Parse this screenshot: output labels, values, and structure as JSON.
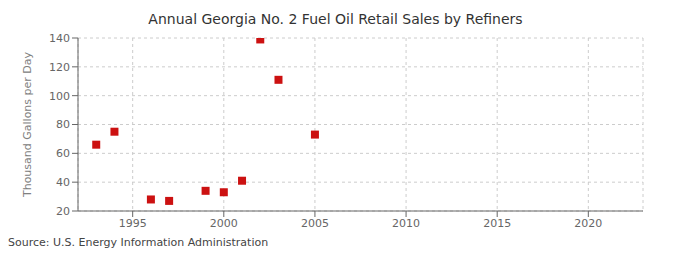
{
  "chart_data": {
    "type": "scatter",
    "title": "Annual Georgia No. 2 Fuel Oil Retail Sales by Refiners",
    "y_label": "Thousand Gallons per Day",
    "annotations": [
      "Source: U.S. Energy Information Administration"
    ],
    "x": [
      1993,
      1994,
      1996,
      1997,
      1999,
      2000,
      2001,
      2002,
      2003,
      2005
    ],
    "values": [
      66,
      75,
      28,
      27,
      34,
      33,
      41,
      139,
      111,
      73
    ],
    "color": "#cc1111",
    "marker": "square",
    "xlim": [
      1992,
      2023
    ],
    "ylim": [
      20,
      140
    ],
    "xticks": [
      1995,
      2000,
      2005,
      2010,
      2015,
      2020
    ],
    "yticks": [
      20,
      40,
      60,
      80,
      100,
      120,
      140
    ],
    "grid": true
  }
}
